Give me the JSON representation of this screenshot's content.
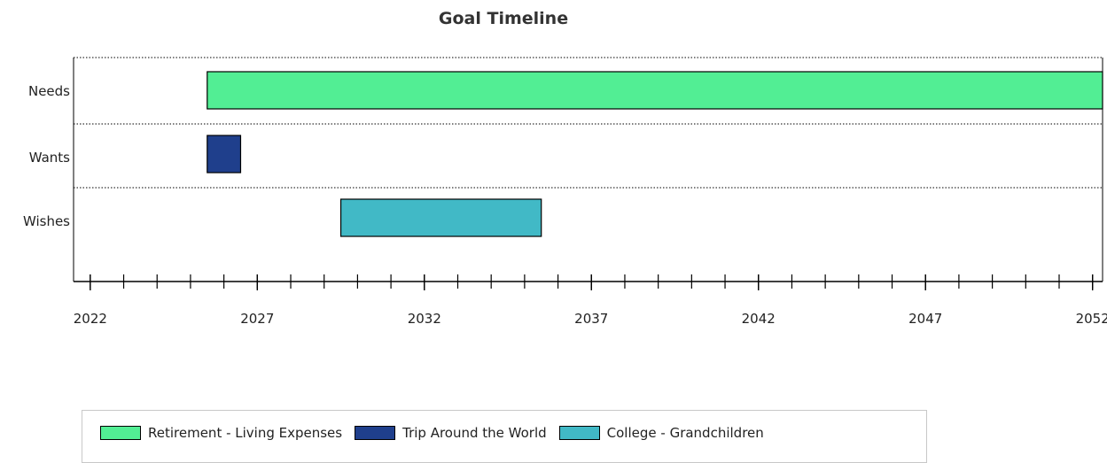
{
  "chart_data": {
    "type": "gantt",
    "title": "Goal Timeline",
    "xlim": [
      2021.5,
      2052.3
    ],
    "categories": [
      "Needs",
      "Wants",
      "Wishes"
    ],
    "x_ticks": [
      2022,
      2027,
      2032,
      2037,
      2042,
      2047,
      2052
    ],
    "minor_tick_step": 1,
    "grid": "dotted row separators",
    "legend_position": "bottom",
    "series": [
      {
        "name": "Retirement - Living Expenses",
        "category": "Needs",
        "start": 2025.5,
        "end": 2052.3,
        "color": "#52ee94"
      },
      {
        "name": "Trip Around the World",
        "category": "Wants",
        "start": 2025.5,
        "end": 2026.5,
        "color": "#1f3f8c"
      },
      {
        "name": "College - Grandchildren",
        "category": "Wishes",
        "start": 2029.5,
        "end": 2035.5,
        "color": "#41b9c6"
      }
    ]
  }
}
